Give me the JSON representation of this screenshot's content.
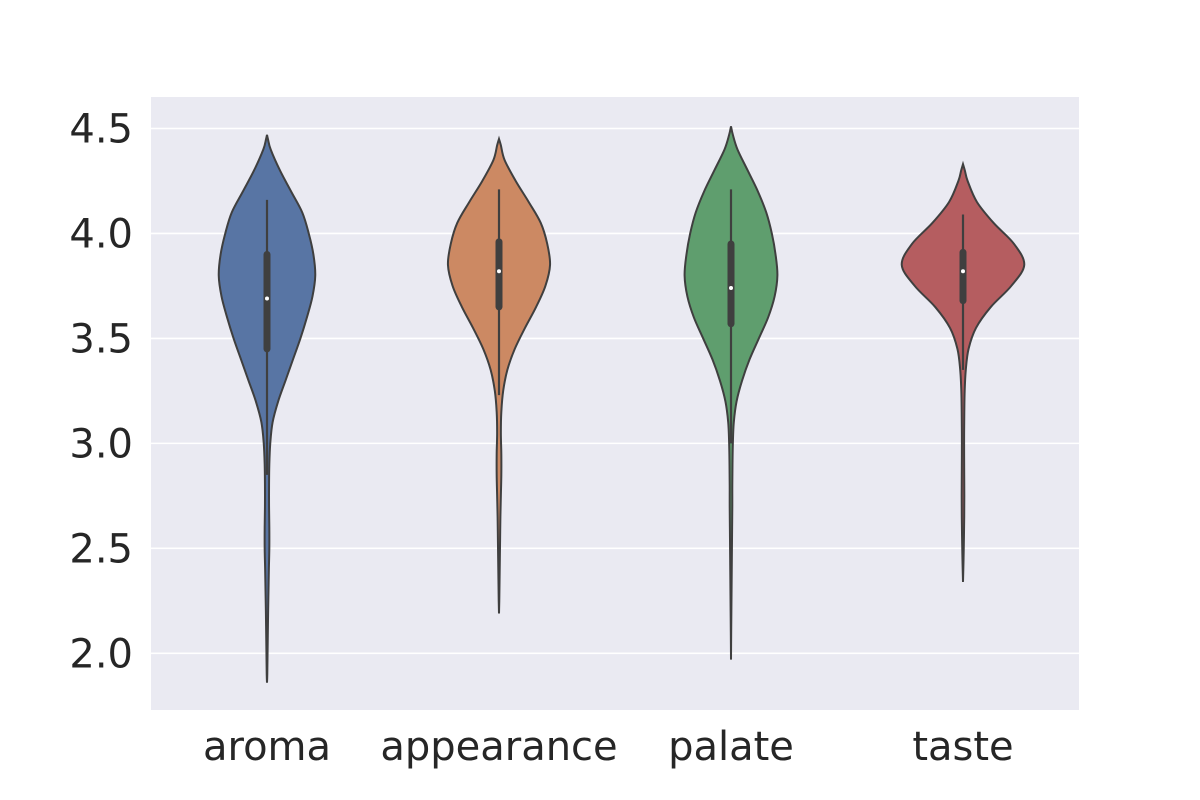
{
  "chart_data": {
    "type": "violin",
    "title": "",
    "xlabel": "",
    "ylabel": "",
    "ylim": [
      1.73,
      4.65
    ],
    "yticks": [
      2.0,
      2.5,
      3.0,
      3.5,
      4.0,
      4.5
    ],
    "ytick_labels": [
      "2.0",
      "2.5",
      "3.0",
      "3.5",
      "4.0",
      "4.5"
    ],
    "grid": true,
    "categories": [
      "aroma",
      "appearance",
      "palate",
      "taste"
    ],
    "series": [
      {
        "color": "#5875a4",
        "min": 1.86,
        "max": 4.47,
        "q1": 3.45,
        "median": 3.69,
        "q3": 3.9,
        "whisker_low": 2.85,
        "whisker_high": 4.16,
        "density": [
          [
            4.47,
            0.0
          ],
          [
            4.45,
            0.01
          ],
          [
            4.4,
            0.04
          ],
          [
            4.3,
            0.14
          ],
          [
            4.2,
            0.26
          ],
          [
            4.1,
            0.38
          ],
          [
            4.0,
            0.45
          ],
          [
            3.9,
            0.5
          ],
          [
            3.8,
            0.52
          ],
          [
            3.7,
            0.49
          ],
          [
            3.6,
            0.43
          ],
          [
            3.5,
            0.36
          ],
          [
            3.4,
            0.28
          ],
          [
            3.3,
            0.2
          ],
          [
            3.2,
            0.12
          ],
          [
            3.1,
            0.06
          ],
          [
            3.0,
            0.035
          ],
          [
            2.9,
            0.025
          ],
          [
            2.8,
            0.022
          ],
          [
            2.7,
            0.022
          ],
          [
            2.6,
            0.025
          ],
          [
            2.5,
            0.025
          ],
          [
            2.4,
            0.02
          ],
          [
            2.3,
            0.016
          ],
          [
            2.2,
            0.012
          ],
          [
            2.1,
            0.009
          ],
          [
            2.0,
            0.006
          ],
          [
            1.9,
            0.003
          ],
          [
            1.86,
            0.0
          ]
        ]
      },
      {
        "color": "#cc8963",
        "min": 2.19,
        "max": 4.45,
        "q1": 3.65,
        "median": 3.82,
        "q3": 3.96,
        "whisker_low": 3.23,
        "whisker_high": 4.21,
        "density": [
          [
            4.45,
            0.0
          ],
          [
            4.42,
            0.02
          ],
          [
            4.35,
            0.06
          ],
          [
            4.25,
            0.18
          ],
          [
            4.15,
            0.32
          ],
          [
            4.05,
            0.45
          ],
          [
            3.95,
            0.52
          ],
          [
            3.85,
            0.55
          ],
          [
            3.75,
            0.5
          ],
          [
            3.65,
            0.4
          ],
          [
            3.55,
            0.28
          ],
          [
            3.45,
            0.17
          ],
          [
            3.35,
            0.09
          ],
          [
            3.25,
            0.045
          ],
          [
            3.15,
            0.025
          ],
          [
            3.05,
            0.02
          ],
          [
            2.95,
            0.025
          ],
          [
            2.85,
            0.025
          ],
          [
            2.75,
            0.02
          ],
          [
            2.65,
            0.015
          ],
          [
            2.55,
            0.012
          ],
          [
            2.45,
            0.009
          ],
          [
            2.35,
            0.006
          ],
          [
            2.25,
            0.003
          ],
          [
            2.19,
            0.0
          ]
        ]
      },
      {
        "color": "#5f9e6e",
        "min": 1.97,
        "max": 4.51,
        "q1": 3.57,
        "median": 3.74,
        "q3": 3.95,
        "whisker_low": 3.0,
        "whisker_high": 4.21,
        "density": [
          [
            4.51,
            0.0
          ],
          [
            4.47,
            0.02
          ],
          [
            4.4,
            0.07
          ],
          [
            4.3,
            0.18
          ],
          [
            4.2,
            0.29
          ],
          [
            4.1,
            0.38
          ],
          [
            4.0,
            0.44
          ],
          [
            3.9,
            0.48
          ],
          [
            3.8,
            0.5
          ],
          [
            3.7,
            0.47
          ],
          [
            3.6,
            0.4
          ],
          [
            3.5,
            0.3
          ],
          [
            3.4,
            0.2
          ],
          [
            3.3,
            0.12
          ],
          [
            3.2,
            0.06
          ],
          [
            3.1,
            0.03
          ],
          [
            3.0,
            0.02
          ],
          [
            2.9,
            0.016
          ],
          [
            2.8,
            0.014
          ],
          [
            2.7,
            0.014
          ],
          [
            2.6,
            0.012
          ],
          [
            2.5,
            0.01
          ],
          [
            2.4,
            0.008
          ],
          [
            2.3,
            0.006
          ],
          [
            2.2,
            0.004
          ],
          [
            2.1,
            0.002
          ],
          [
            1.97,
            0.0
          ]
        ]
      },
      {
        "color": "#b55d60",
        "min": 2.34,
        "max": 4.33,
        "q1": 3.68,
        "median": 3.82,
        "q3": 3.91,
        "whisker_low": 3.35,
        "whisker_high": 4.09,
        "density": [
          [
            4.33,
            0.0
          ],
          [
            4.3,
            0.02
          ],
          [
            4.25,
            0.05
          ],
          [
            4.15,
            0.15
          ],
          [
            4.05,
            0.33
          ],
          [
            3.95,
            0.55
          ],
          [
            3.85,
            0.66
          ],
          [
            3.75,
            0.52
          ],
          [
            3.65,
            0.3
          ],
          [
            3.55,
            0.14
          ],
          [
            3.45,
            0.06
          ],
          [
            3.35,
            0.03
          ],
          [
            3.25,
            0.018
          ],
          [
            3.15,
            0.014
          ],
          [
            3.05,
            0.012
          ],
          [
            2.95,
            0.012
          ],
          [
            2.85,
            0.013
          ],
          [
            2.75,
            0.014
          ],
          [
            2.65,
            0.013
          ],
          [
            2.55,
            0.01
          ],
          [
            2.45,
            0.006
          ],
          [
            2.34,
            0.0
          ]
        ]
      }
    ]
  }
}
